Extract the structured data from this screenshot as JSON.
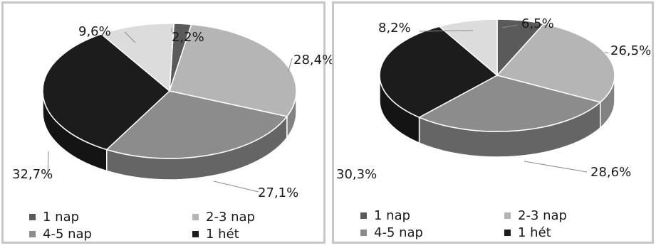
{
  "chart_data": [
    {
      "type": "pie",
      "categories": [
        "1 nap",
        "2-3 nap",
        "4-5 nap",
        "1 hét"
      ],
      "values": [
        2.2,
        28.4,
        27.1,
        32.7,
        9.6
      ],
      "slice_categories": [
        "1 nap",
        "2-3 nap",
        "4-5 nap",
        "1 hét",
        ""
      ],
      "labels": [
        "2,2%",
        "28,4%",
        "27,1%",
        "32,7%",
        "9,6%"
      ],
      "legend": [
        "1 nap",
        "2-3 nap",
        "4-5 nap",
        "1 hét"
      ],
      "legend_position": "bottom"
    },
    {
      "type": "pie",
      "categories": [
        "1 nap",
        "2-3 nap",
        "4-5 nap",
        "1 hét"
      ],
      "values": [
        6.5,
        26.5,
        28.6,
        30.3,
        8.2
      ],
      "slice_categories": [
        "1 nap",
        "2-3 nap",
        "4-5 nap",
        "1 hét",
        ""
      ],
      "labels": [
        "6,5%",
        "26,5%",
        "28,6%",
        "30,3%",
        "8,2%"
      ],
      "legend": [
        "1 nap",
        "2-3 nap",
        "4-5 nap",
        "1 hét"
      ],
      "legend_position": "bottom"
    }
  ],
  "colors": {
    "1 nap": "#5a5a5a",
    "2-3 nap": "#b5b5b5",
    "4-5 nap": "#8c8c8c",
    "1 hét": "#1c1c1c",
    "other": "#dcdcdc"
  }
}
